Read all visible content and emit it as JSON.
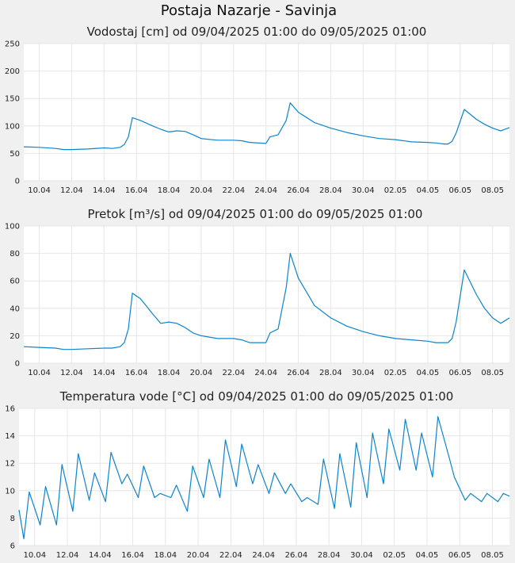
{
  "page": {
    "title": "Postaja Nazarje - Savinja",
    "colors": {
      "line": "#0a85d0",
      "grid": "#e6e6e6",
      "plot_background": "#ffffff",
      "page_background": "#f0f0f0"
    }
  },
  "chart_data": [
    {
      "type": "line",
      "title": "Vodostaj [cm] od 09/04/2025 01:00 do 09/05/2025 01:00",
      "xlabel": "",
      "ylabel": "",
      "xlim": [
        "2025-04-09T01:00",
        "2025-05-09T01:00"
      ],
      "ylim": [
        0,
        250
      ],
      "yticks": [
        0,
        50,
        100,
        150,
        200,
        250
      ],
      "xticks": [
        "10.04",
        "12.04",
        "14.04",
        "16.04",
        "18.04",
        "20.04",
        "22.04",
        "24.04",
        "26.04",
        "28.04",
        "30.04",
        "02.05",
        "04.05",
        "06.05",
        "08.05"
      ],
      "grid": true,
      "series": [
        {
          "x": [
            "2025-04-09T01:00",
            "2025-04-10T00:00",
            "2025-04-11T00:00",
            "2025-04-11T12:00",
            "2025-04-12T00:00",
            "2025-04-13T00:00",
            "2025-04-14T00:00",
            "2025-04-14T12:00",
            "2025-04-15T00:00",
            "2025-04-15T06:00",
            "2025-04-15T12:00",
            "2025-04-15T18:00",
            "2025-04-16T06:00",
            "2025-04-17T00:00",
            "2025-04-17T12:00",
            "2025-04-18T00:00",
            "2025-04-18T12:00",
            "2025-04-19T00:00",
            "2025-04-19T12:00",
            "2025-04-20T00:00",
            "2025-04-21T00:00",
            "2025-04-22T00:00",
            "2025-04-22T12:00",
            "2025-04-23T00:00",
            "2025-04-24T00:00",
            "2025-04-24T06:00",
            "2025-04-24T18:00",
            "2025-04-25T06:00",
            "2025-04-25T12:00",
            "2025-04-26T00:00",
            "2025-04-27T00:00",
            "2025-04-28T00:00",
            "2025-04-29T00:00",
            "2025-04-30T00:00",
            "2025-05-01T00:00",
            "2025-05-02T00:00",
            "2025-05-03T00:00",
            "2025-05-04T00:00",
            "2025-05-04T12:00",
            "2025-05-05T00:00",
            "2025-05-05T06:00",
            "2025-05-05T12:00",
            "2025-05-05T18:00",
            "2025-05-06T06:00",
            "2025-05-07T00:00",
            "2025-05-07T12:00",
            "2025-05-08T00:00",
            "2025-05-08T12:00",
            "2025-05-09T01:00"
          ],
          "y": [
            62,
            61,
            59,
            57,
            57,
            58,
            60,
            59,
            61,
            66,
            80,
            115,
            110,
            100,
            94,
            89,
            91,
            90,
            84,
            77,
            74,
            74,
            73,
            70,
            68,
            80,
            84,
            110,
            142,
            125,
            106,
            96,
            88,
            82,
            77,
            75,
            71,
            70,
            69,
            67,
            67,
            72,
            87,
            130,
            112,
            103,
            96,
            91,
            97
          ]
        }
      ]
    },
    {
      "type": "line",
      "title": "Pretok [m³/s] od 09/04/2025 01:00 do 09/05/2025 01:00",
      "xlabel": "",
      "ylabel": "",
      "xlim": [
        "2025-04-09T01:00",
        "2025-05-09T01:00"
      ],
      "ylim": [
        0,
        100
      ],
      "yticks": [
        0,
        20,
        40,
        60,
        80,
        100
      ],
      "xticks": [
        "10.04",
        "12.04",
        "14.04",
        "16.04",
        "18.04",
        "20.04",
        "22.04",
        "24.04",
        "26.04",
        "28.04",
        "30.04",
        "02.05",
        "04.05",
        "06.05",
        "08.05"
      ],
      "grid": true,
      "series": [
        {
          "x": [
            "2025-04-09T01:00",
            "2025-04-10T00:00",
            "2025-04-11T00:00",
            "2025-04-11T12:00",
            "2025-04-12T00:00",
            "2025-04-13T00:00",
            "2025-04-14T00:00",
            "2025-04-14T12:00",
            "2025-04-15T00:00",
            "2025-04-15T06:00",
            "2025-04-15T12:00",
            "2025-04-15T18:00",
            "2025-04-16T06:00",
            "2025-04-17T00:00",
            "2025-04-17T12:00",
            "2025-04-18T00:00",
            "2025-04-18T12:00",
            "2025-04-19T00:00",
            "2025-04-19T12:00",
            "2025-04-20T00:00",
            "2025-04-21T00:00",
            "2025-04-22T00:00",
            "2025-04-22T12:00",
            "2025-04-23T00:00",
            "2025-04-24T00:00",
            "2025-04-24T06:00",
            "2025-04-24T18:00",
            "2025-04-25T06:00",
            "2025-04-25T12:00",
            "2025-04-26T00:00",
            "2025-04-27T00:00",
            "2025-04-28T00:00",
            "2025-04-29T00:00",
            "2025-04-30T00:00",
            "2025-05-01T00:00",
            "2025-05-02T00:00",
            "2025-05-03T00:00",
            "2025-05-04T00:00",
            "2025-05-04T12:00",
            "2025-05-05T00:00",
            "2025-05-05T06:00",
            "2025-05-05T12:00",
            "2025-05-05T18:00",
            "2025-05-06T06:00",
            "2025-05-07T00:00",
            "2025-05-07T12:00",
            "2025-05-08T00:00",
            "2025-05-08T12:00",
            "2025-05-09T01:00"
          ],
          "y": [
            12,
            11.5,
            11,
            10,
            10,
            10.5,
            11,
            11,
            12,
            15,
            25,
            51,
            47,
            36,
            29,
            30,
            29,
            26,
            22,
            20,
            18,
            18,
            17,
            15,
            15,
            22,
            25,
            55,
            80,
            62,
            42,
            33,
            27,
            23,
            20,
            18,
            17,
            16,
            15,
            15,
            15,
            18,
            30,
            68,
            50,
            40,
            33,
            29,
            33
          ]
        }
      ]
    },
    {
      "type": "line",
      "title": "Temperatura vode [°C] od 09/04/2025 01:00 do 09/05/2025 01:00",
      "xlabel": "",
      "ylabel": "",
      "xlim": [
        "2025-04-09T01:00",
        "2025-05-09T01:00"
      ],
      "ylim": [
        6,
        16
      ],
      "yticks": [
        6,
        8,
        10,
        12,
        14,
        16
      ],
      "xticks": [
        "10.04",
        "12.04",
        "14.04",
        "16.04",
        "18.04",
        "20.04",
        "22.04",
        "24.04",
        "26.04",
        "28.04",
        "30.04",
        "02.05",
        "04.05",
        "06.05",
        "08.05"
      ],
      "grid": true,
      "series": [
        {
          "x": [
            "2025-04-09T01:00",
            "2025-04-09T08:00",
            "2025-04-09T16:00",
            "2025-04-10T08:00",
            "2025-04-10T16:00",
            "2025-04-11T08:00",
            "2025-04-11T16:00",
            "2025-04-12T08:00",
            "2025-04-12T16:00",
            "2025-04-13T08:00",
            "2025-04-13T16:00",
            "2025-04-14T08:00",
            "2025-04-14T16:00",
            "2025-04-15T08:00",
            "2025-04-15T16:00",
            "2025-04-16T08:00",
            "2025-04-16T16:00",
            "2025-04-17T08:00",
            "2025-04-17T16:00",
            "2025-04-18T08:00",
            "2025-04-18T16:00",
            "2025-04-19T08:00",
            "2025-04-19T16:00",
            "2025-04-20T08:00",
            "2025-04-20T16:00",
            "2025-04-21T08:00",
            "2025-04-21T16:00",
            "2025-04-22T08:00",
            "2025-04-22T16:00",
            "2025-04-23T08:00",
            "2025-04-23T16:00",
            "2025-04-24T08:00",
            "2025-04-24T16:00",
            "2025-04-25T08:00",
            "2025-04-25T16:00",
            "2025-04-26T08:00",
            "2025-04-26T16:00",
            "2025-04-27T08:00",
            "2025-04-27T16:00",
            "2025-04-28T08:00",
            "2025-04-28T16:00",
            "2025-04-29T08:00",
            "2025-04-29T16:00",
            "2025-04-30T08:00",
            "2025-04-30T16:00",
            "2025-05-01T08:00",
            "2025-05-01T16:00",
            "2025-05-02T08:00",
            "2025-05-02T16:00",
            "2025-05-03T08:00",
            "2025-05-03T16:00",
            "2025-05-04T08:00",
            "2025-05-04T16:00",
            "2025-05-05T08:00",
            "2025-05-05T16:00",
            "2025-05-06T08:00",
            "2025-05-06T16:00",
            "2025-05-07T08:00",
            "2025-05-07T16:00",
            "2025-05-08T08:00",
            "2025-05-08T16:00",
            "2025-05-09T01:00"
          ],
          "y": [
            8.6,
            6.5,
            9.9,
            7.5,
            10.3,
            7.5,
            11.9,
            8.5,
            12.7,
            9.3,
            11.3,
            9.2,
            12.8,
            10.5,
            11.2,
            9.5,
            11.8,
            9.5,
            9.8,
            9.5,
            10.4,
            8.5,
            11.8,
            9.5,
            12.3,
            9.5,
            13.7,
            10.3,
            13.4,
            10.5,
            11.9,
            9.8,
            11.3,
            9.8,
            10.5,
            9.2,
            9.5,
            9.0,
            12.3,
            8.7,
            12.7,
            8.8,
            13.5,
            9.5,
            14.2,
            10.5,
            14.5,
            11.5,
            15.2,
            11.5,
            14.2,
            11.0,
            15.4,
            12.5,
            11.0,
            9.3,
            9.8,
            9.2,
            9.8,
            9.2,
            9.8,
            9.6
          ]
        }
      ]
    }
  ]
}
